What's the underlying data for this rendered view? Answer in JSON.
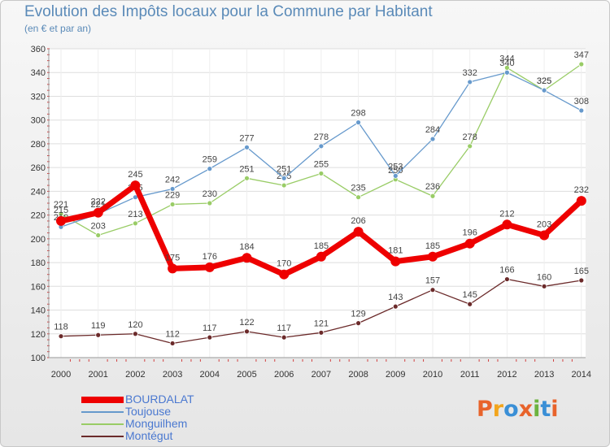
{
  "header": {
    "title": "Evolution des Impôts locaux pour la Commune par Habitant",
    "subtitle": "(en € et par an)"
  },
  "logo": {
    "text": "Proxiti",
    "colors": [
      "#e8632b",
      "#f2a51d",
      "#3a8fd6",
      "#e8632b",
      "#6cb33f",
      "#3a8fd6",
      "#e8632b"
    ]
  },
  "chart_data": {
    "type": "line",
    "x": [
      "2000",
      "2001",
      "2002",
      "2003",
      "2004",
      "2005",
      "2006",
      "2007",
      "2008",
      "2009",
      "2010",
      "2011",
      "2012",
      "2013",
      "2014"
    ],
    "ylim": [
      100,
      360
    ],
    "yticks": [
      100,
      120,
      140,
      160,
      180,
      200,
      220,
      240,
      260,
      280,
      300,
      320,
      340,
      360
    ],
    "grid": true,
    "legend_position": "bottom-left",
    "series": [
      {
        "name": "BOURDALAT",
        "color": "#ee0000",
        "values": [
          215,
          222,
          245,
          175,
          176,
          184,
          170,
          185,
          206,
          181,
          185,
          196,
          212,
          203,
          232
        ]
      },
      {
        "name": "Toujouse",
        "color": "#6699cc",
        "values": [
          210,
          221,
          235,
          242,
          259,
          277,
          251,
          278,
          298,
          253,
          284,
          332,
          340,
          325,
          308
        ]
      },
      {
        "name": "Monguilhem",
        "color": "#99cc66",
        "values": [
          221,
          203,
          213,
          229,
          230,
          251,
          245,
          255,
          235,
          250,
          236,
          278,
          344,
          325,
          347
        ]
      },
      {
        "name": "Montégut",
        "color": "#6b2a2a",
        "values": [
          118,
          119,
          120,
          112,
          117,
          122,
          117,
          121,
          129,
          143,
          157,
          145,
          166,
          160,
          165
        ]
      }
    ]
  }
}
